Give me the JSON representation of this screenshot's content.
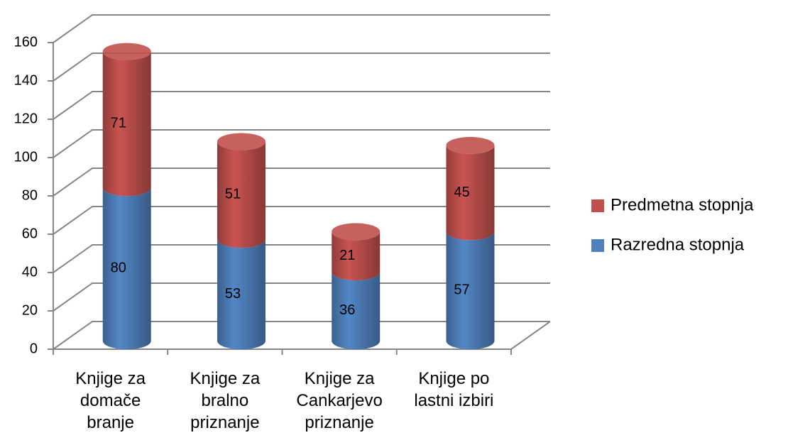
{
  "chart_data": {
    "type": "bar3d_stacked",
    "categories": [
      "Knjige za domače branje",
      "Knjige za bralno priznanje",
      "Knjige za Cankarjevo priznanje",
      "Knjige po lastni izbiri"
    ],
    "series": [
      {
        "name": "Razredna stopnja",
        "color": "#4f81bd",
        "values": [
          80,
          53,
          36,
          57
        ]
      },
      {
        "name": "Predmetna stopnja",
        "color": "#c0504d",
        "values": [
          71,
          51,
          21,
          45
        ]
      }
    ],
    "ylim": [
      0,
      160
    ],
    "yticks": [
      0,
      20,
      40,
      60,
      80,
      100,
      120,
      140,
      160
    ],
    "grid": true,
    "legend": "right"
  }
}
